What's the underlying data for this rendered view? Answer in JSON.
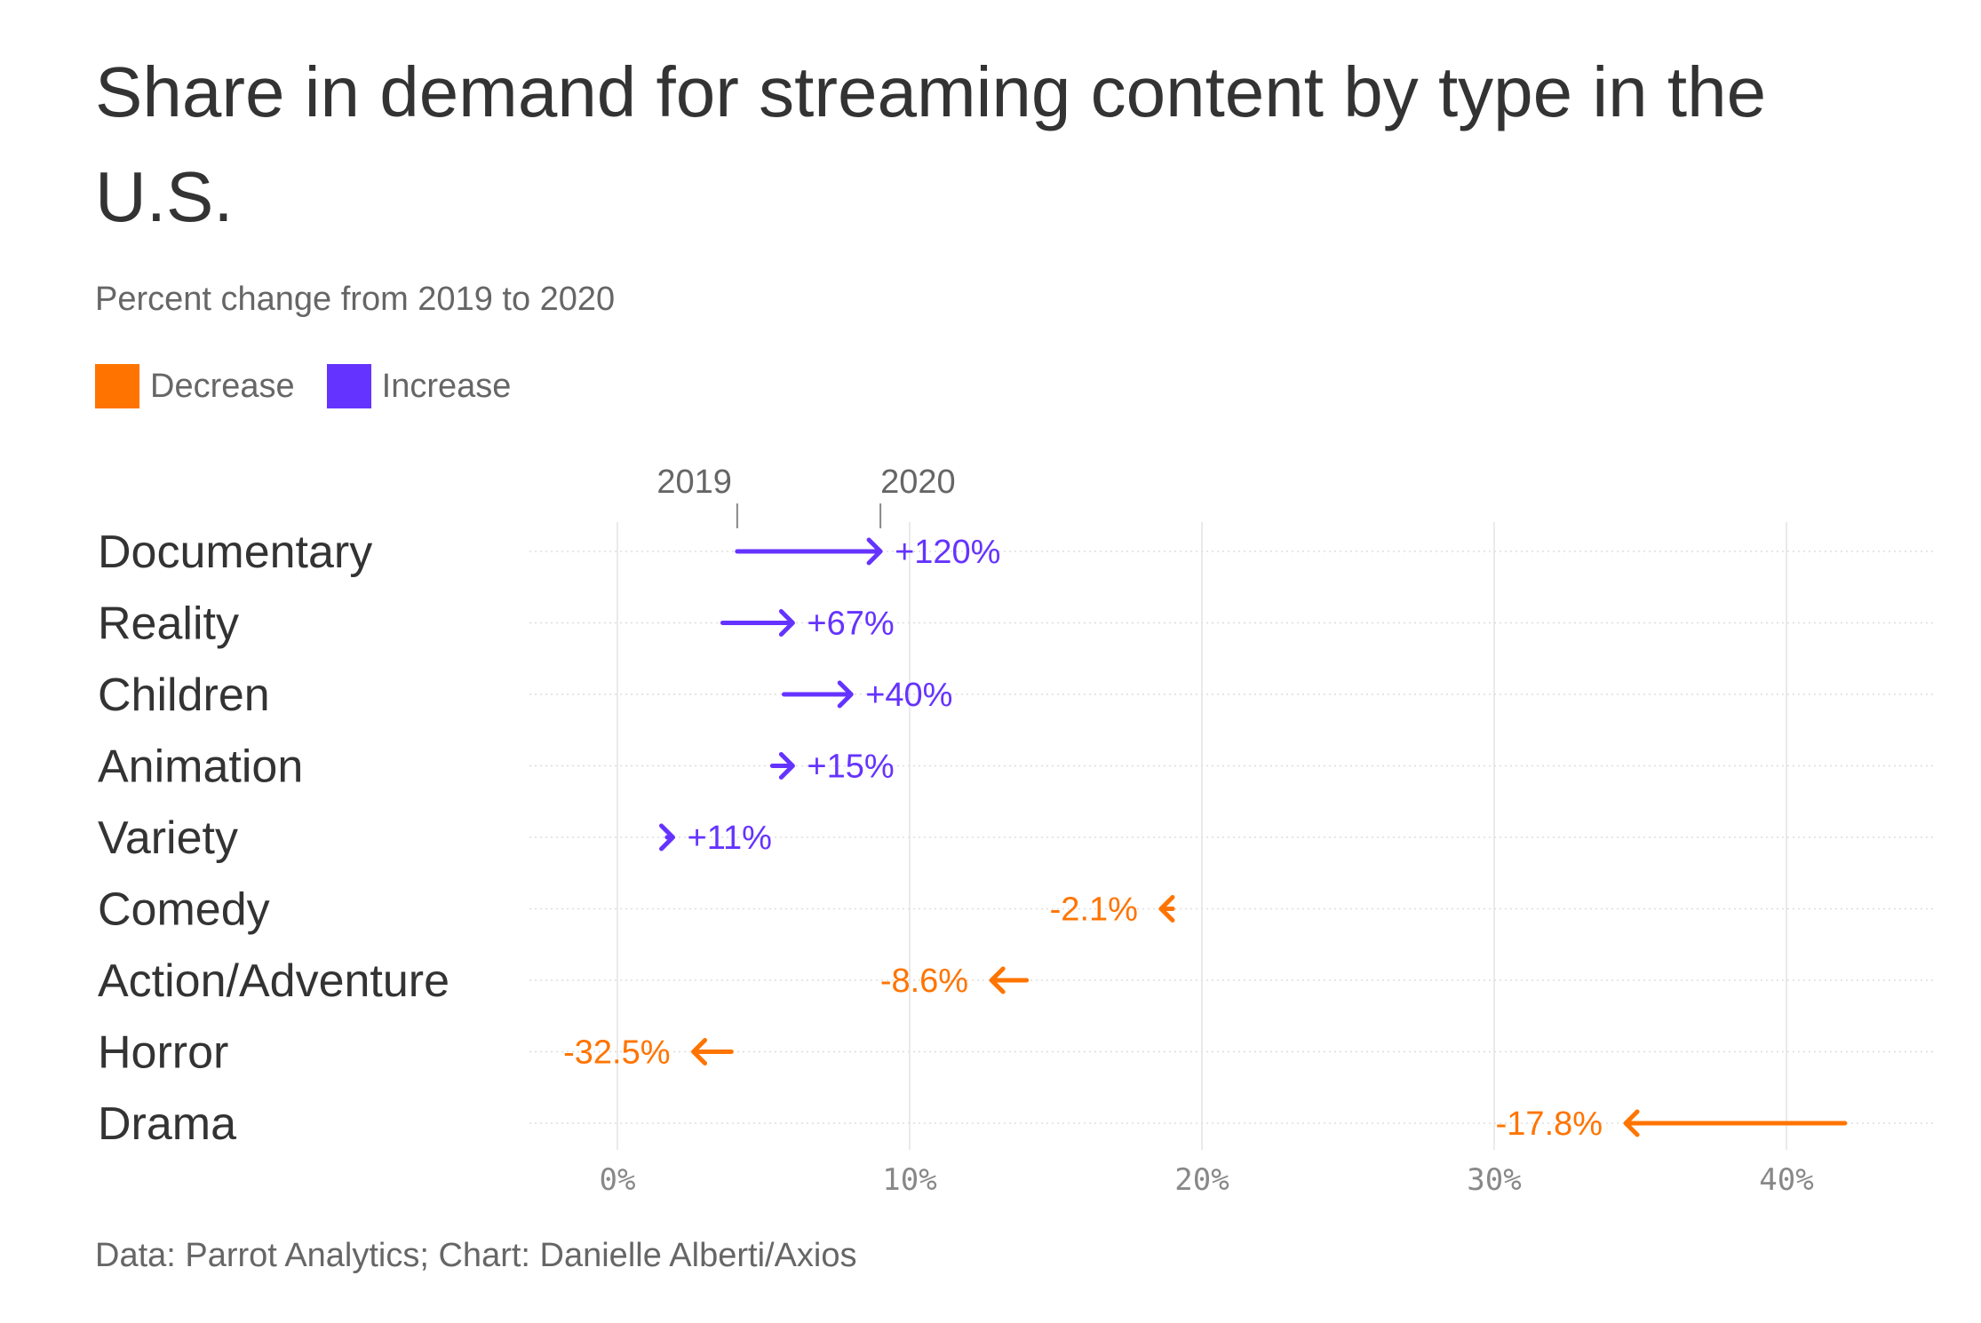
{
  "title": "Share in demand for streaming content by type in the U.S.",
  "subtitle": "Percent change from 2019 to 2020",
  "legend": [
    {
      "label": "Decrease",
      "color": "#FF7400"
    },
    {
      "label": "Increase",
      "color": "#6533FF"
    }
  ],
  "source": "Data: Parrot Analytics; Chart: Danielle Alberti/Axios",
  "colors": {
    "decrease": "#FF7400",
    "increase": "#6533FF",
    "grid": "#e3e3e3",
    "row_line": "#dddddd"
  },
  "chart_data": {
    "type": "arrow",
    "year_labels": {
      "start": "2019",
      "end": "2020"
    },
    "annotation_row": "Documentary",
    "x_ticks": [
      0,
      10,
      20,
      30,
      40
    ],
    "x_tick_labels": [
      "0%",
      "10%",
      "20%",
      "30%",
      "40%"
    ],
    "xlim": [
      -3,
      45
    ],
    "grid": true,
    "rows": [
      {
        "category": "Documentary",
        "from": 4.1,
        "to": 9.0,
        "label": "+120%",
        "direction": "increase"
      },
      {
        "category": "Reality",
        "from": 3.6,
        "to": 6.0,
        "label": "+67%",
        "direction": "increase"
      },
      {
        "category": "Children",
        "from": 5.7,
        "to": 8.0,
        "label": "+40%",
        "direction": "increase"
      },
      {
        "category": "Animation",
        "from": 5.3,
        "to": 6.0,
        "label": "+15%",
        "direction": "increase"
      },
      {
        "category": "Variety",
        "from": 1.7,
        "to": 1.9,
        "label": "+11%",
        "direction": "increase"
      },
      {
        "category": "Comedy",
        "from": 19.0,
        "to": 18.6,
        "label": "-2.1%",
        "direction": "decrease"
      },
      {
        "category": "Action/Adventure",
        "from": 14.0,
        "to": 12.8,
        "label": "-8.6%",
        "direction": "decrease"
      },
      {
        "category": "Horror",
        "from": 3.9,
        "to": 2.6,
        "label": "-32.5%",
        "direction": "decrease"
      },
      {
        "category": "Drama",
        "from": 42.0,
        "to": 34.5,
        "label": "-17.8%",
        "direction": "decrease"
      }
    ]
  }
}
